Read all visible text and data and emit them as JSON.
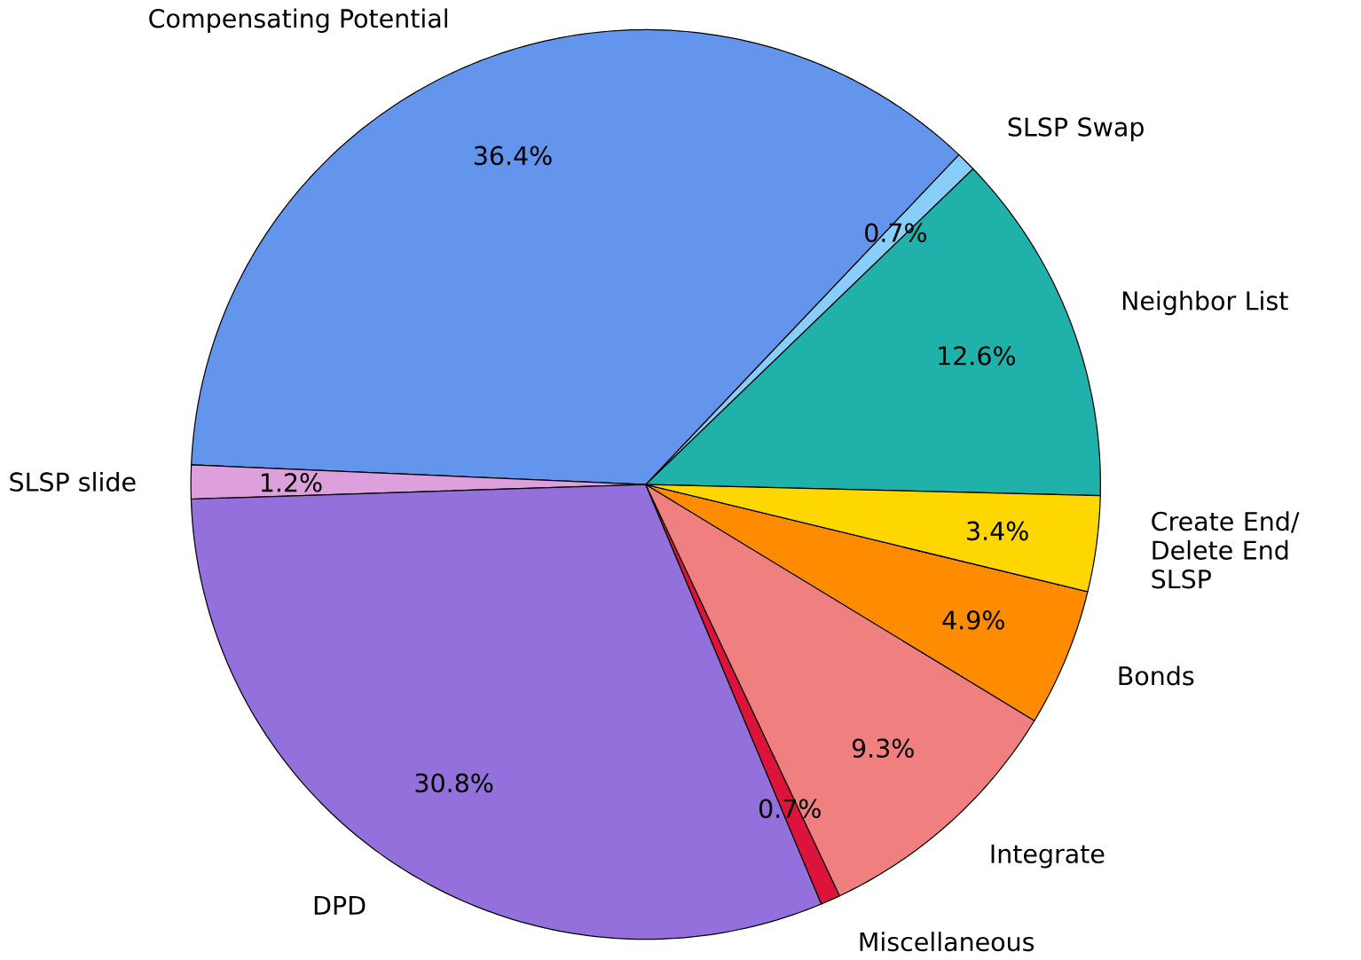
{
  "chart_data": {
    "type": "pie",
    "value_labels": [
      "12.6%",
      "0.7%",
      "36.4%",
      "1.2%",
      "30.8%",
      "0.7%",
      "9.3%",
      "4.9%",
      "3.4%"
    ],
    "categories": [
      "Neighbor List",
      "SLSP Swap",
      "Compensating Potential",
      "SLSP slide",
      "DPD",
      "Miscellaneous",
      "Integrate",
      "Bonds",
      "Create End/ Delete End SLSP"
    ],
    "values": [
      12.6,
      0.7,
      36.4,
      1.2,
      30.8,
      0.7,
      9.3,
      4.9,
      3.4
    ],
    "colors": [
      "#20b2aa",
      "#87cefa",
      "#6495ed",
      "#dda0dd",
      "#9370db",
      "#dc143c",
      "#f08080",
      "#ff8c00",
      "#ffd700"
    ]
  }
}
